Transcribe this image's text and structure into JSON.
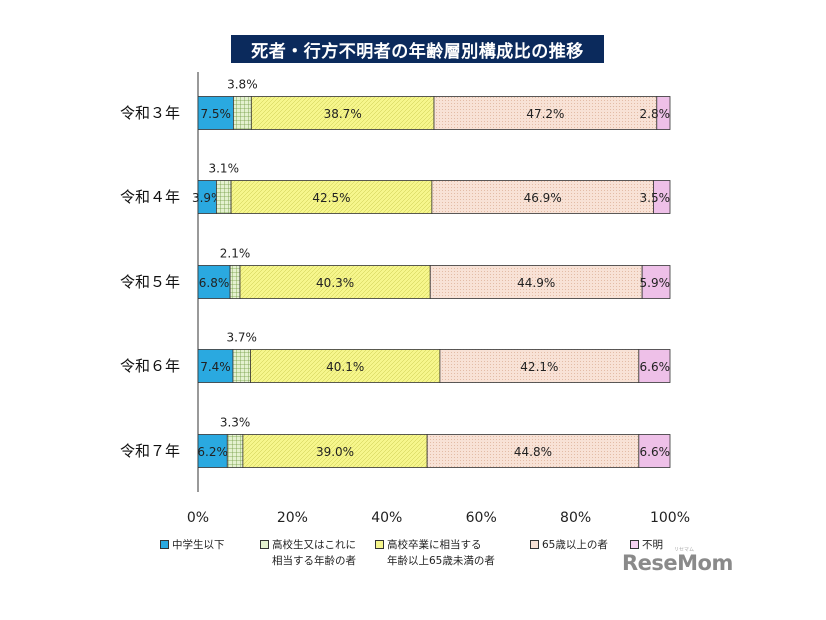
{
  "title": "死者・行方不明者の年齢層別構成比の推移",
  "watermark": "ReseMom",
  "watermark_small": "リセマム",
  "colors": {
    "title_bg": "#0b2a5c",
    "junior": "#2aa9e0",
    "highschool": "#cfe6b0",
    "graduate": "#f5f58a",
    "senior": "#f7dccd",
    "unknown": "#f3c9ee"
  },
  "chart_data": {
    "type": "bar",
    "orientation": "horizontal",
    "stacked": true,
    "percent": true,
    "title": "死者・行方不明者の年齢層別構成比の推移",
    "categories": [
      "令和３年",
      "令和４年",
      "令和５年",
      "令和６年",
      "令和７年"
    ],
    "series": [
      {
        "name": "中学生以下",
        "values": [
          7.5,
          3.9,
          6.8,
          7.4,
          6.2
        ],
        "labels": [
          "7.5%",
          "3.9%",
          "6.8%",
          "7.4%",
          "6.2%"
        ]
      },
      {
        "name": "高校生又はこれに相当する年齢の者",
        "values": [
          3.8,
          3.1,
          2.1,
          3.7,
          3.3
        ],
        "labels": [
          "3.8%",
          "3.1%",
          "2.1%",
          "3.7%",
          "3.3%"
        ]
      },
      {
        "name": "高校卒業に相当する年齢以上65歳未満の者",
        "values": [
          38.7,
          42.5,
          40.3,
          40.1,
          39.0
        ],
        "labels": [
          "38.7%",
          "42.5%",
          "40.3%",
          "40.1%",
          "39.0%"
        ]
      },
      {
        "name": "65歳以上の者",
        "values": [
          47.2,
          46.9,
          44.9,
          42.1,
          44.8
        ],
        "labels": [
          "47.2%",
          "46.9%",
          "44.9%",
          "42.1%",
          "44.8%"
        ]
      },
      {
        "name": "不明",
        "values": [
          2.8,
          3.5,
          5.9,
          6.6,
          6.6
        ],
        "labels": [
          "2.8%",
          "3.5%",
          "5.9%",
          "6.6%",
          "6.6%"
        ]
      }
    ],
    "xlim": [
      0,
      100
    ],
    "xticks": [
      "0%",
      "20%",
      "40%",
      "60%",
      "80%",
      "100%"
    ],
    "legend_position": "bottom",
    "grid": false
  },
  "legend": [
    {
      "line1": "中学生以下",
      "line2": ""
    },
    {
      "line1": "高校生又はこれに",
      "line2": "相当する年齢の者"
    },
    {
      "line1": "高校卒業に相当する",
      "line2": "年齢以上65歳未満の者"
    },
    {
      "line1": "65歳以上の者",
      "line2": ""
    },
    {
      "line1": "不明",
      "line2": ""
    }
  ]
}
